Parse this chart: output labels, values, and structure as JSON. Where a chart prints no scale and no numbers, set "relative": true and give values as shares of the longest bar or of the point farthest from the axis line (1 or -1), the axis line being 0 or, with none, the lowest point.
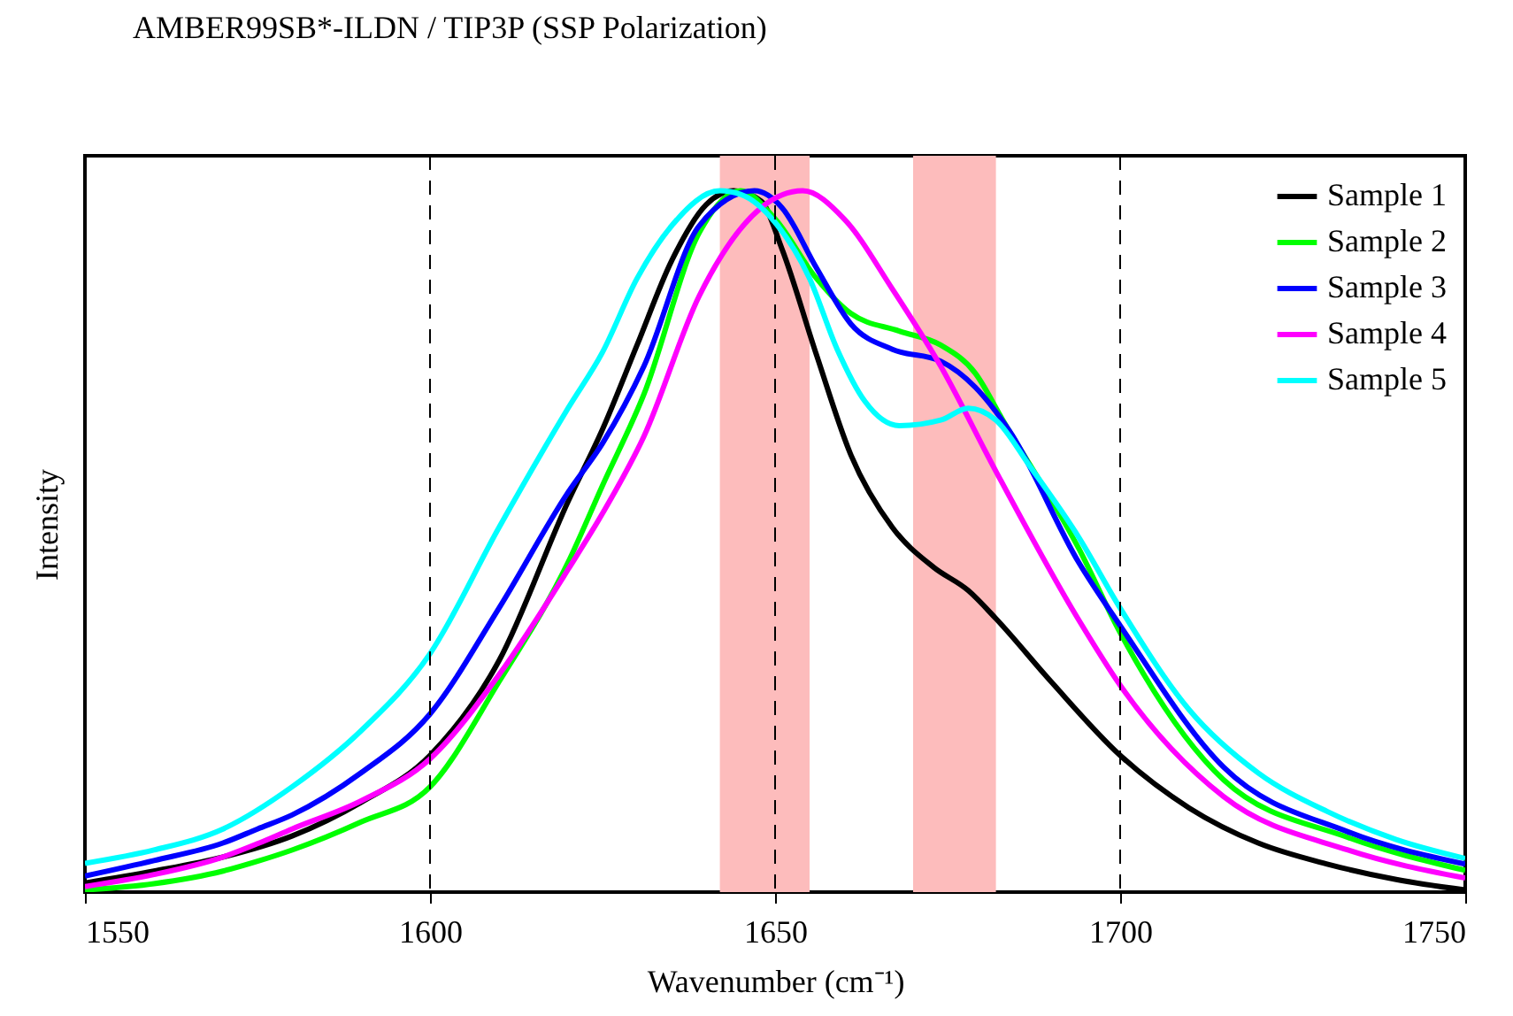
{
  "chart_data": {
    "type": "line",
    "title": "AMBER99SB*-ILDN / TIP3P (SSP Polarization)",
    "xlabel": "Wavenumber (cm⁻¹)",
    "ylabel": "Intensity",
    "relative": true,
    "xlim": [
      1550,
      1750
    ],
    "xticks": [
      1550,
      1600,
      1650,
      1700,
      1750
    ],
    "legend": "top right",
    "series": [
      {
        "name": "Sample 1",
        "color": "#000000",
        "x": [
          1550,
          1560,
          1570,
          1580,
          1590,
          1600,
          1610,
          1620,
          1625,
          1630,
          1635,
          1640,
          1644,
          1648,
          1651,
          1656,
          1661,
          1667,
          1673,
          1678,
          1682,
          1690,
          1700,
          1710,
          1720,
          1730,
          1740,
          1750
        ],
        "values": [
          0.013,
          0.03,
          0.05,
          0.08,
          0.128,
          0.195,
          0.33,
          0.557,
          0.66,
          0.78,
          0.9,
          0.98,
          1.0,
          0.985,
          0.917,
          0.766,
          0.623,
          0.52,
          0.463,
          0.43,
          0.39,
          0.3,
          0.195,
          0.12,
          0.07,
          0.04,
          0.018,
          0.003
        ]
      },
      {
        "name": "Sample 2",
        "color": "#00ff00",
        "x": [
          1550,
          1560,
          1570,
          1575,
          1580,
          1590,
          1600,
          1610,
          1620,
          1625,
          1631,
          1639,
          1645,
          1650,
          1656,
          1661,
          1668,
          1674,
          1679,
          1683,
          1694,
          1700,
          1715,
          1733,
          1750
        ],
        "values": [
          0.003,
          0.012,
          0.03,
          0.044,
          0.06,
          0.1,
          0.15,
          0.3,
          0.47,
          0.58,
          0.71,
          0.94,
          1.0,
          0.96,
          0.875,
          0.825,
          0.8,
          0.78,
          0.74,
          0.673,
          0.49,
          0.37,
          0.16,
          0.078,
          0.031
        ]
      },
      {
        "name": "Sample 3",
        "color": "#0000ff",
        "x": [
          1550,
          1560,
          1570,
          1575,
          1580,
          1590,
          1600,
          1610,
          1620,
          1625,
          1631,
          1639,
          1647,
          1651,
          1656,
          1661,
          1667,
          1674,
          1679,
          1684,
          1694,
          1700,
          1715,
          1733,
          1750
        ],
        "values": [
          0.023,
          0.045,
          0.07,
          0.09,
          0.11,
          0.17,
          0.254,
          0.405,
          0.57,
          0.64,
          0.75,
          0.95,
          1.0,
          0.976,
          0.89,
          0.81,
          0.774,
          0.757,
          0.72,
          0.657,
          0.47,
          0.38,
          0.178,
          0.086,
          0.04
        ]
      },
      {
        "name": "Sample 4",
        "color": "#ff00ff",
        "x": [
          1550,
          1560,
          1570,
          1575,
          1580,
          1590,
          1600,
          1610,
          1620,
          1625,
          1631,
          1639,
          1648,
          1654,
          1660,
          1667,
          1674,
          1682,
          1694,
          1700,
          1715,
          1733,
          1750
        ],
        "values": [
          0.008,
          0.025,
          0.05,
          0.069,
          0.09,
          0.13,
          0.19,
          0.31,
          0.46,
          0.54,
          0.65,
          0.85,
          0.976,
          1.0,
          0.96,
          0.86,
          0.75,
          0.6,
          0.388,
          0.295,
          0.136,
          0.06,
          0.02
        ]
      },
      {
        "name": "Sample 5",
        "color": "#00ffff",
        "x": [
          1550,
          1560,
          1570,
          1580,
          1590,
          1600,
          1610,
          1620,
          1625,
          1630,
          1635,
          1642,
          1645,
          1650,
          1655,
          1659,
          1663,
          1668,
          1674,
          1678,
          1682,
          1687,
          1694,
          1700,
          1710,
          1720,
          1730,
          1740,
          1750
        ],
        "values": [
          0.041,
          0.06,
          0.09,
          0.15,
          0.23,
          0.34,
          0.52,
          0.69,
          0.77,
          0.875,
          0.95,
          1.0,
          0.995,
          0.955,
          0.875,
          0.774,
          0.7,
          0.665,
          0.673,
          0.69,
          0.673,
          0.606,
          0.506,
          0.405,
          0.26,
          0.17,
          0.115,
          0.075,
          0.048
        ]
      }
    ],
    "ref_lines": [
      {
        "axis": "x",
        "value": 1600,
        "color": "#000000",
        "line_style": "dashed"
      },
      {
        "axis": "x",
        "value": 1650,
        "color": "#000000",
        "line_style": "dashed"
      },
      {
        "axis": "x",
        "value": 1700,
        "color": "#000000",
        "line_style": "dashed"
      }
    ],
    "bands": [
      {
        "axis": "x",
        "from": 1642,
        "to": 1655,
        "color": "#fdbcbc"
      },
      {
        "axis": "x",
        "from": 1670,
        "to": 1682,
        "color": "#fdbcbc"
      }
    ]
  }
}
